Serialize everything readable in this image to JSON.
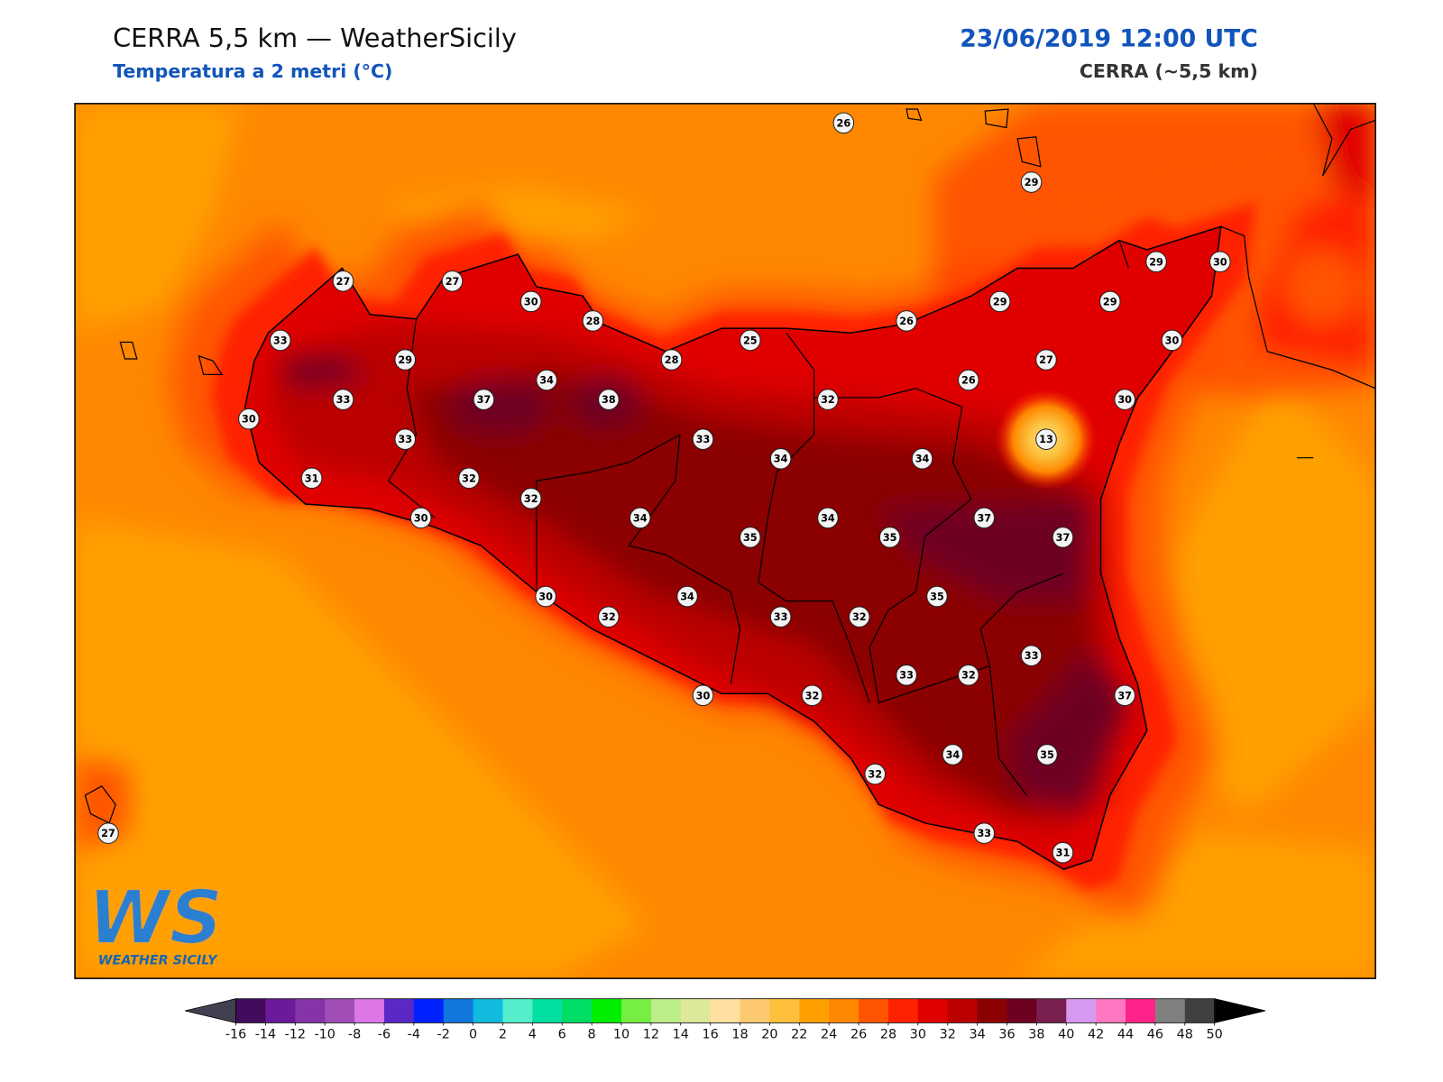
{
  "header": {
    "title": "CERRA 5,5 km — WeatherSicily",
    "subtitle": "Temperatura a 2 metri (°C)",
    "datetime": "23/06/2019 12:00 UTC",
    "model": "CERRA (~5,5 km)"
  },
  "stations": [
    26,
    29,
    27,
    27,
    30,
    28,
    26,
    29,
    29,
    29,
    30,
    33,
    25,
    30,
    29,
    28,
    27,
    26,
    34,
    33,
    37,
    38,
    32,
    30,
    30,
    33,
    33,
    13,
    34,
    34,
    31,
    32,
    32,
    30,
    34,
    34,
    37,
    35,
    35,
    37,
    30,
    34,
    35,
    32,
    33,
    32,
    33,
    33,
    32,
    30,
    32,
    37,
    34,
    35,
    32,
    27,
    33,
    31
  ],
  "colorbar": {
    "ticks": [
      -16,
      -14,
      -12,
      -10,
      -8,
      -6,
      -4,
      -2,
      0,
      2,
      4,
      6,
      8,
      10,
      12,
      14,
      16,
      18,
      20,
      22,
      24,
      26,
      28,
      30,
      32,
      34,
      36,
      38,
      40,
      42,
      44,
      46,
      48,
      50
    ],
    "colors": [
      "#420b5c",
      "#6a1a9a",
      "#8534a8",
      "#a04db8",
      "#dd77e8",
      "#5b28c8",
      "#0022ff",
      "#1177dd",
      "#11bbdd",
      "#55eecc",
      "#00e0a0",
      "#00dd66",
      "#00ee00",
      "#77ee44",
      "#bbee88",
      "#dde899",
      "#ffe0a0",
      "#fcc870",
      "#fcc03c",
      "#ffa000",
      "#ff8800",
      "#ff5500",
      "#ff2200",
      "#e00000",
      "#bb0000",
      "#8b0000",
      "#6e0020",
      "#7a2050",
      "#d899f0",
      "#ff77c0",
      "#ff2288",
      "#808080",
      "#404040"
    ],
    "under_color": "#404050",
    "over_color": "#000000"
  },
  "logo": {
    "letters": "WS",
    "text": "WEATHER SICILY"
  }
}
